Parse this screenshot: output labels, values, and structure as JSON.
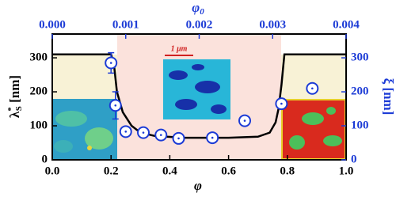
{
  "chart_data": {
    "type": "line",
    "xlabel": "φ",
    "x2label": {
      "symbol": "φ",
      "sub": "0"
    },
    "ylabel": {
      "symbol": "λ",
      "sup": "*",
      "sub": "S",
      "unit": " [nm]"
    },
    "y2label": "ξ [nm]",
    "annotation": "1 μm",
    "xlim": [
      0,
      1
    ],
    "xticks": [
      {
        "value": 0,
        "label": "0.0"
      },
      {
        "value": 0.2,
        "label": "0.2"
      },
      {
        "value": 0.4,
        "label": "0.4"
      },
      {
        "value": 0.6,
        "label": "0.6"
      },
      {
        "value": 0.8,
        "label": "0.8"
      },
      {
        "value": 1,
        "label": "1.0"
      }
    ],
    "x2lim": [
      0,
      0.004
    ],
    "x2ticks": [
      {
        "value": 0,
        "label": "0.000"
      },
      {
        "value": 0.001,
        "label": "0.001"
      },
      {
        "value": 0.002,
        "label": "0.002"
      },
      {
        "value": 0.003,
        "label": "0.003"
      },
      {
        "value": 0.004,
        "label": "0.004"
      }
    ],
    "ylim": [
      0,
      370
    ],
    "yticks": [
      0,
      100,
      200,
      300
    ],
    "y2lim": [
      0,
      370
    ],
    "y2ticks": [
      0,
      100,
      200,
      300
    ],
    "axis_color": "#000000",
    "axis2_color": "#1c3bd6",
    "series": [
      {
        "type": "line",
        "color": "#000000",
        "x": [
          0,
          0.2,
          0.21,
          0.22,
          0.24,
          0.27,
          0.3,
          0.35,
          0.45,
          0.6,
          0.7,
          0.74,
          0.76,
          0.77,
          0.78,
          0.79,
          1.0
        ],
        "y": [
          310,
          310,
          280,
          200,
          140,
          100,
          80,
          70,
          65,
          65,
          68,
          80,
          110,
          150,
          220,
          310,
          310
        ]
      },
      {
        "type": "scatter",
        "axis": "y2",
        "color": "#1c3bd6",
        "x": [
          0.2,
          0.215,
          0.25,
          0.31,
          0.37,
          0.43,
          0.545,
          0.655,
          0.78,
          0.885
        ],
        "y": [
          285,
          160,
          83,
          80,
          73,
          63,
          65,
          115,
          165,
          210
        ],
        "errors": [
          30,
          40,
          12,
          10,
          10,
          8,
          8,
          8,
          15,
          5
        ]
      }
    ]
  }
}
